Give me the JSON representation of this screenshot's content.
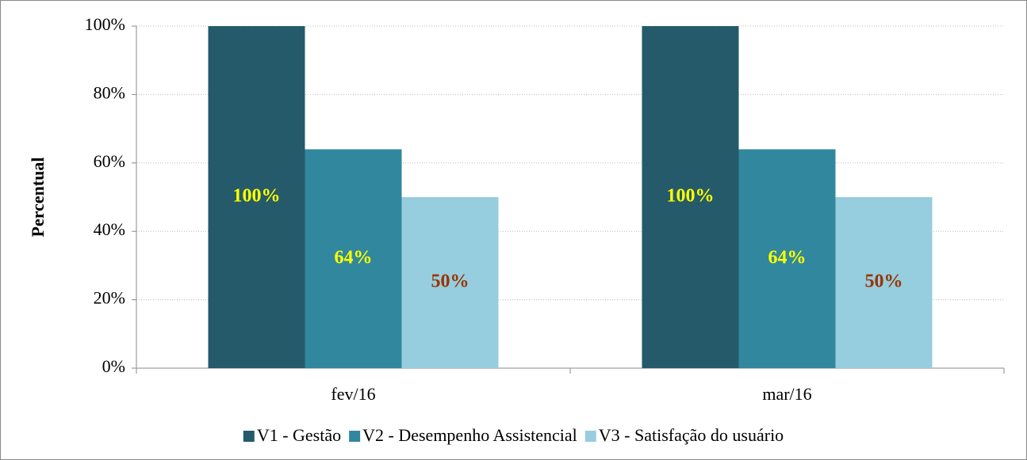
{
  "chart_data": {
    "type": "bar",
    "y_label": "Percentual",
    "categories": [
      "fev/16",
      "mar/16"
    ],
    "series": [
      {
        "name": "V1 - Gestão",
        "color": "#245a6a",
        "label_color": "#ffff00",
        "values": [
          100,
          100
        ],
        "value_labels": [
          "100%",
          "100%"
        ]
      },
      {
        "name": "V2 - Desempenho Assistencial",
        "color": "#31879e",
        "label_color": "#ffff00",
        "values": [
          64,
          64
        ],
        "value_labels": [
          "64%",
          "64%"
        ]
      },
      {
        "name": "V3 - Satisfação do usuário",
        "color": "#96cddf",
        "label_color": "#993300",
        "values": [
          50,
          50
        ],
        "value_labels": [
          "50%",
          "50%"
        ]
      }
    ],
    "ylim": [
      0,
      100
    ],
    "yticks": [
      {
        "value": 0,
        "label": "0%"
      },
      {
        "value": 20,
        "label": "20%"
      },
      {
        "value": 40,
        "label": "40%"
      },
      {
        "value": 60,
        "label": "60%"
      },
      {
        "value": 80,
        "label": "80%"
      },
      {
        "value": 100,
        "label": "100%"
      }
    ],
    "grid": true,
    "legend": "bottom"
  }
}
